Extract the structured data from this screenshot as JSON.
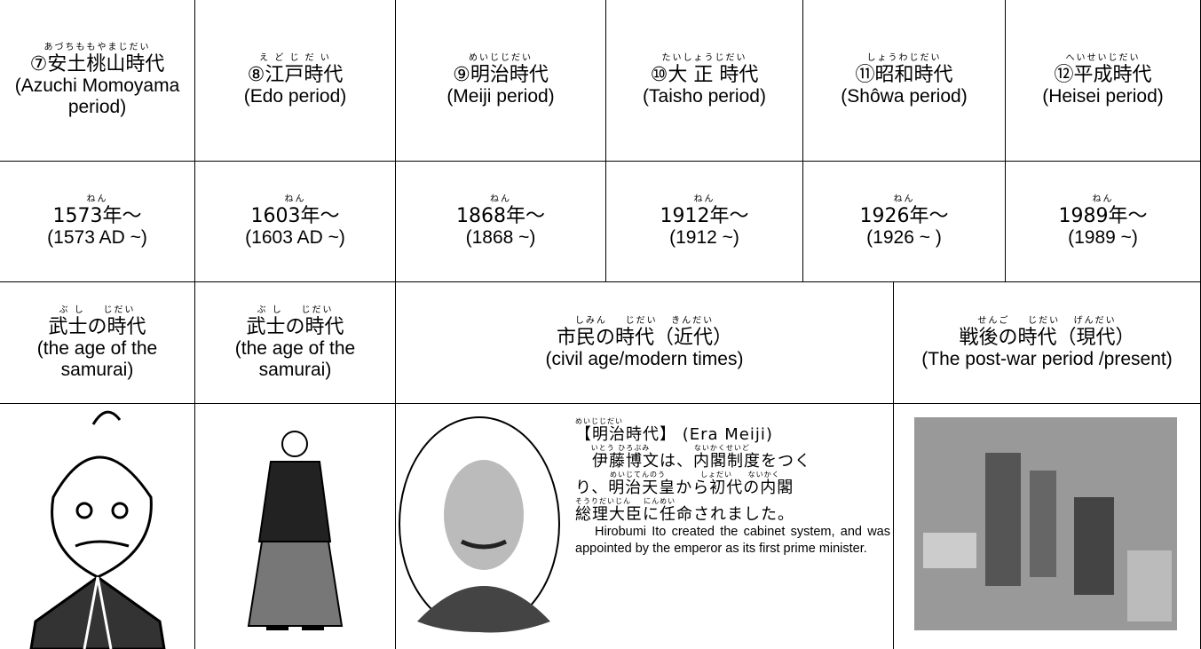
{
  "eras": [
    {
      "ruby": "あづちももやまじだい",
      "name": "⑦安土桃山時代",
      "english": "(Azuchi Momoyama period)"
    },
    {
      "ruby": "え ど じ だ い",
      "name": "⑧江戸時代",
      "english": "(Edo period)"
    },
    {
      "ruby": "めいじじだい",
      "name": "⑨明治時代",
      "english": "(Meiji period)"
    },
    {
      "ruby": "たいしょうじだい",
      "name": "⑩大 正 時代",
      "english": "(Taisho period)"
    },
    {
      "ruby": "しょうわじだい",
      "name": "⑪昭和時代",
      "english": "(Shôwa period)"
    },
    {
      "ruby": "へいせいじだい",
      "name": "⑫平成時代",
      "english": "(Heisei period)"
    }
  ],
  "years": [
    {
      "ruby": "ねん",
      "year": "1573年～",
      "english": "(1573 AD ~)"
    },
    {
      "ruby": "ねん",
      "year": "1603年～",
      "english": "(1603 AD ~)"
    },
    {
      "ruby": "ねん",
      "year": "1868年～",
      "english": "(1868 ~)"
    },
    {
      "ruby": "ねん",
      "year": "1912年～",
      "english": "(1912 ~)"
    },
    {
      "ruby": "ねん",
      "year": "1926年～",
      "english": "(1926 ~ )"
    },
    {
      "ruby": "ねん",
      "year": "1989年～",
      "english": "(1989 ~)"
    }
  ],
  "ages": [
    {
      "ruby": "ぶ し    じだい",
      "name": "武士の時代",
      "english": "(the age of the samurai)"
    },
    {
      "ruby": "ぶ し    じだい",
      "name": "武士の時代",
      "english": "(the age of the samurai)"
    },
    {
      "ruby": "しみん    じだい   きんだい",
      "name": "市民の時代（近代）",
      "english": "(civil age/modern times)"
    },
    {
      "ruby": "せんご    じだい   げんだい",
      "name": "戦後の時代（現代）",
      "english": "(The post-war period /present)"
    }
  ],
  "meiji": {
    "heading_ruby": "めいじじだい",
    "heading": "【明治時代】 (Era Meiji)",
    "lines": [
      {
        "ruby": "     いとう ひろぶみ              ないかくせいど",
        "text": "　伊藤博文は、内閣制度をつく"
      },
      {
        "ruby": "           めいじてんのう           しょだい     ないかく",
        "text": "り、明治天皇から初代の内閣"
      },
      {
        "ruby": "そうりだいじん    にんめい",
        "text": "総理大臣に任命されました。"
      }
    ],
    "english": "Hirobumi Ito created the cabinet system, and was appointed by the emperor as its first prime minister."
  }
}
